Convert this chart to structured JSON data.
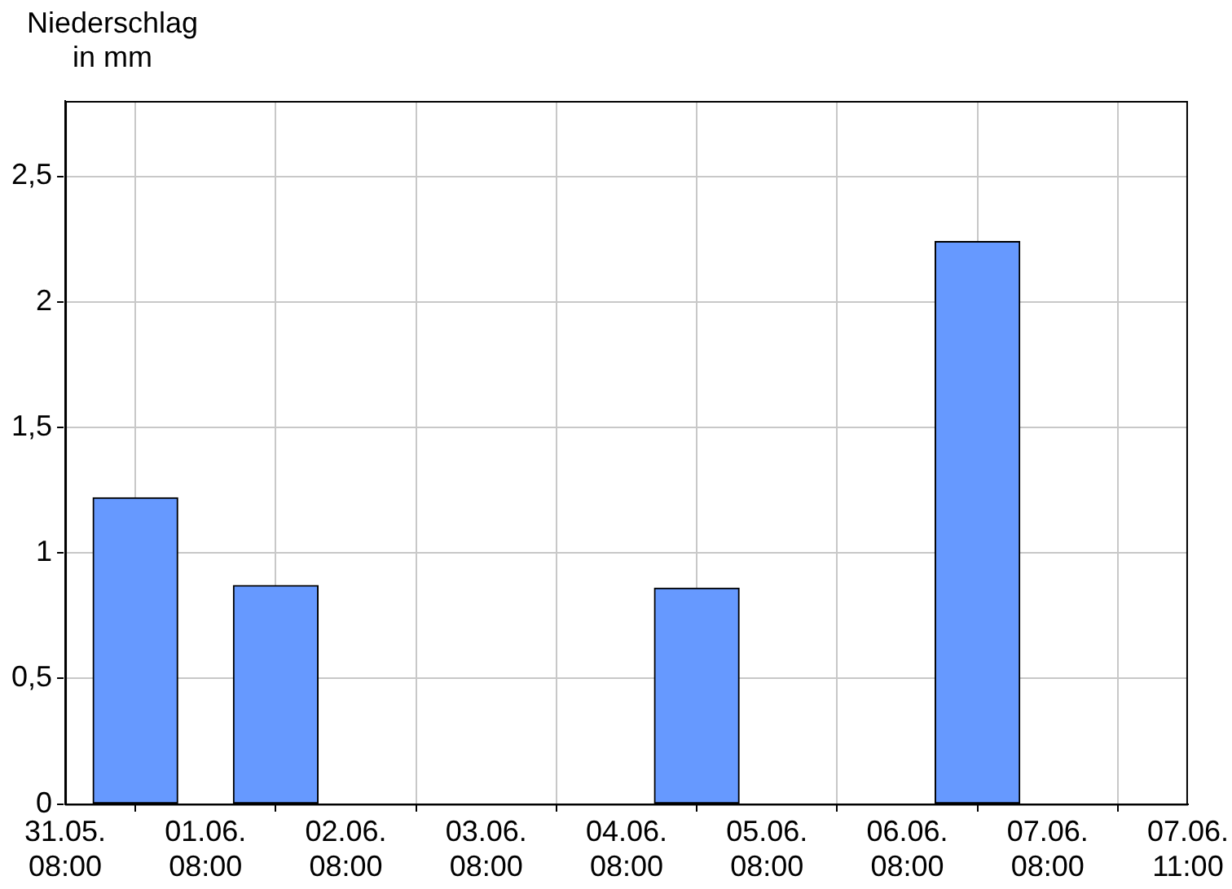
{
  "chart_data": {
    "type": "bar",
    "ylabel": "Niederschlag in mm",
    "x": [
      "--05-31T20:00",
      "--06-01T20:00",
      "--06-04T20:00",
      "--06-06T20:00"
    ],
    "values": [
      1.22,
      0.87,
      0.86,
      2.24
    ],
    "color": "#6699ff",
    "xlim": [
      "--05-31T08:00",
      "--06-08T08:00"
    ],
    "xticks": [
      {
        "value": "--05-31T08:00",
        "label": "31.05. 08:00"
      },
      {
        "value": "--06-01T08:00",
        "label": "01.06. 08:00"
      },
      {
        "value": "--06-02T08:00",
        "label": "02.06. 08:00"
      },
      {
        "value": "--06-03T08:00",
        "label": "03.06. 08:00"
      },
      {
        "value": "--06-04T08:00",
        "label": "04.06. 08:00"
      },
      {
        "value": "--06-05T08:00",
        "label": "05.06. 08:00"
      },
      {
        "value": "--06-06T08:00",
        "label": "06.06. 08:00"
      },
      {
        "value": "--06-07T08:00",
        "label": "07.06. 08:00"
      },
      {
        "value": "--06-08T08:00",
        "label": "07.06. 11:00"
      }
    ],
    "ylim": [
      0,
      2.8
    ],
    "yticks": [
      0,
      {
        "value": 0.5,
        "label": "0,5"
      },
      1,
      {
        "value": 1.5,
        "label": "1,5"
      },
      2,
      {
        "value": 2.5,
        "label": "2,5"
      }
    ],
    "grid": true
  }
}
